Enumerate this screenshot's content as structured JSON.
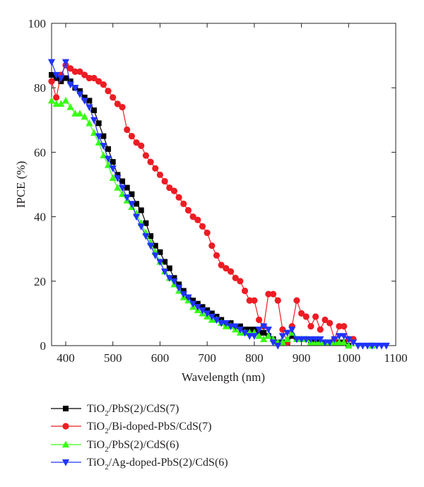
{
  "chart_data": {
    "type": "line",
    "xlabel": "Wavelength (nm)",
    "ylabel": "IPCE (%)",
    "xlim": [
      370,
      1100
    ],
    "ylim": [
      0,
      100
    ],
    "xticks": [
      400,
      500,
      600,
      700,
      800,
      900,
      1000,
      1100
    ],
    "yticks": [
      0,
      20,
      40,
      60,
      80,
      100
    ],
    "grid": false,
    "legend_position": "below",
    "series": [
      {
        "label_parts": [
          "TiO",
          "2",
          "/PbS(2)/CdS(7)"
        ],
        "color": "#000000",
        "marker": "square",
        "x": [
          370,
          380,
          390,
          400,
          410,
          420,
          430,
          440,
          450,
          460,
          470,
          480,
          490,
          500,
          510,
          520,
          530,
          540,
          550,
          560,
          570,
          580,
          590,
          600,
          610,
          620,
          630,
          640,
          650,
          660,
          670,
          680,
          690,
          700,
          710,
          720,
          730,
          740,
          750,
          760,
          770,
          780,
          790,
          800,
          810,
          820,
          830,
          840,
          850,
          860,
          870,
          880,
          890,
          900,
          910,
          920,
          930,
          940,
          950,
          960,
          970,
          980,
          990,
          1000
        ],
        "y": [
          84,
          83,
          82,
          83,
          82,
          80,
          79,
          77,
          76,
          73,
          69,
          65,
          61,
          57,
          53,
          51,
          49,
          47,
          44,
          42,
          38,
          34,
          31,
          29,
          26,
          24,
          21,
          19,
          17,
          15,
          14,
          13,
          12,
          11,
          10,
          9,
          8,
          7,
          7,
          6,
          6,
          5,
          5,
          5,
          4,
          4,
          3,
          2,
          1,
          1,
          1,
          3,
          2,
          2,
          2,
          1,
          1,
          1,
          1,
          1,
          1,
          1,
          1,
          0
        ]
      },
      {
        "label_parts": [
          "TiO",
          "2",
          "/Bi-doped-PbS/CdS(7)"
        ],
        "color": "#ed1c24",
        "marker": "circle",
        "x": [
          370,
          380,
          390,
          400,
          410,
          420,
          430,
          440,
          450,
          460,
          470,
          480,
          490,
          500,
          510,
          520,
          530,
          540,
          550,
          560,
          570,
          580,
          590,
          600,
          610,
          620,
          630,
          640,
          650,
          660,
          670,
          680,
          690,
          700,
          710,
          720,
          730,
          740,
          750,
          760,
          770,
          780,
          790,
          800,
          810,
          820,
          830,
          840,
          850,
          860,
          870,
          880,
          890,
          900,
          910,
          920,
          930,
          940,
          950,
          960,
          970,
          980,
          990,
          1000,
          1010
        ],
        "y": [
          82,
          77,
          84,
          87,
          86,
          85,
          85,
          84,
          83,
          83,
          82,
          81,
          79,
          77,
          75,
          74,
          67,
          65,
          63,
          62,
          59,
          57,
          55,
          53,
          51,
          49,
          48,
          46,
          44,
          42,
          40,
          39,
          37,
          35,
          31,
          28,
          25,
          24,
          23,
          21,
          20,
          17,
          14,
          14,
          8,
          6,
          16,
          16,
          14,
          5,
          1,
          6,
          14,
          10,
          9,
          6,
          9,
          5,
          8,
          7,
          2,
          6,
          6,
          2,
          2
        ]
      },
      {
        "label_parts": [
          "TiO",
          "2",
          "/PbS(2)/CdS(6)"
        ],
        "color": "#39ff14",
        "marker": "triangle-up",
        "x": [
          370,
          380,
          390,
          400,
          410,
          420,
          430,
          440,
          450,
          460,
          470,
          480,
          490,
          500,
          510,
          520,
          530,
          540,
          550,
          560,
          570,
          580,
          590,
          600,
          610,
          620,
          630,
          640,
          650,
          660,
          670,
          680,
          690,
          700,
          710,
          720,
          730,
          740,
          750,
          760,
          770,
          780,
          790,
          800,
          810,
          820,
          830,
          840,
          850,
          860,
          870,
          880,
          890,
          900,
          910,
          920,
          930,
          940,
          950,
          960,
          970,
          980,
          990,
          1000,
          1050
        ],
        "y": [
          76,
          75,
          75,
          76,
          74,
          72,
          72,
          71,
          69,
          66,
          63,
          59,
          56,
          52,
          49,
          47,
          45,
          43,
          41,
          38,
          35,
          32,
          29,
          26,
          23,
          21,
          19,
          17,
          15,
          14,
          12,
          11,
          10,
          9,
          8,
          8,
          7,
          6,
          6,
          5,
          4,
          4,
          4,
          4,
          3,
          2,
          3,
          2,
          1,
          1,
          2,
          4,
          2,
          2,
          2,
          1,
          1,
          1,
          1,
          1,
          1,
          1,
          1,
          0,
          0
        ]
      },
      {
        "label_parts": [
          "TiO",
          "2",
          "/Ag-doped-PbS(2)/CdS(6)"
        ],
        "color": "#1f33ff",
        "marker": "triangle-down",
        "x": [
          370,
          380,
          390,
          400,
          410,
          420,
          430,
          440,
          450,
          460,
          470,
          480,
          490,
          500,
          510,
          520,
          530,
          540,
          550,
          560,
          570,
          580,
          590,
          600,
          610,
          620,
          630,
          640,
          650,
          660,
          670,
          680,
          690,
          700,
          710,
          720,
          730,
          740,
          750,
          760,
          770,
          780,
          790,
          800,
          810,
          820,
          830,
          840,
          850,
          860,
          870,
          880,
          890,
          900,
          910,
          920,
          930,
          940,
          950,
          960,
          970,
          980,
          990,
          1000,
          1010,
          1020,
          1030,
          1040,
          1050,
          1060,
          1070,
          1080
        ],
        "y": [
          88,
          84,
          83,
          88,
          81,
          80,
          78,
          76,
          74,
          70,
          65,
          62,
          58,
          55,
          52,
          49,
          46,
          44,
          40,
          37,
          34,
          31,
          28,
          26,
          23,
          21,
          20,
          18,
          16,
          15,
          13,
          12,
          11,
          10,
          9,
          8,
          7,
          7,
          6,
          6,
          5,
          4,
          3,
          3,
          5,
          6,
          5,
          1,
          0,
          3,
          4,
          5,
          2,
          2,
          2,
          2,
          2,
          2,
          1,
          1,
          2,
          3,
          3,
          2,
          1,
          0,
          0,
          0,
          0,
          0,
          0,
          0
        ]
      }
    ]
  }
}
